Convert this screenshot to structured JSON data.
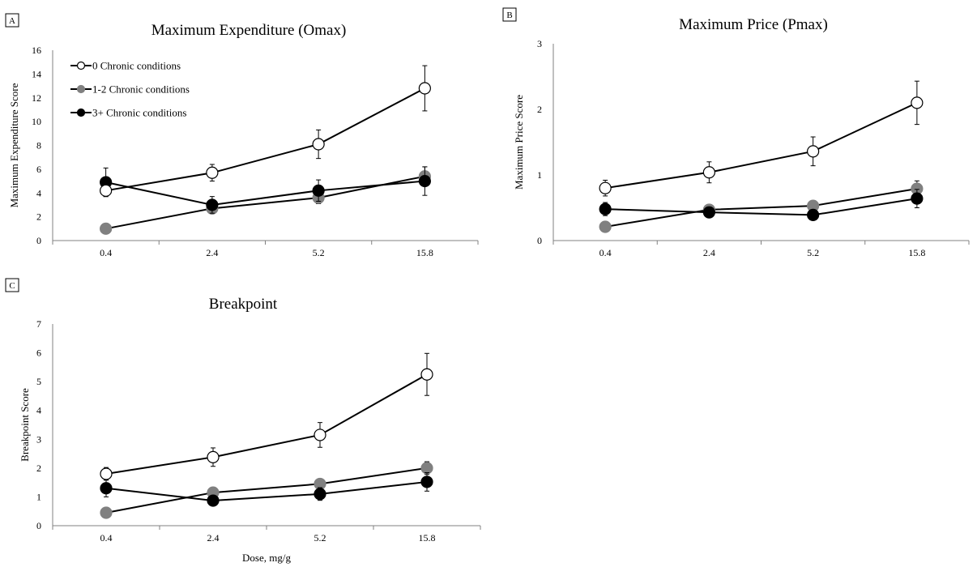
{
  "colors": {
    "axis": "#808080",
    "series_stroke": "#000000",
    "marker_open": "#ffffff",
    "marker_gray": "#808080",
    "marker_black": "#000000"
  },
  "legend": {
    "placement": "top-left",
    "items": [
      "0 Chronic conditions",
      "1-2 Chronic conditions",
      "3+ Chronic conditions"
    ]
  },
  "chart_data": [
    {
      "panel": "A",
      "type": "line",
      "title": "Maximum Expenditure (Omax)",
      "xlabel": "",
      "ylabel": "Maximum Expenditure Score",
      "categories": [
        "0.4",
        "2.4",
        "5.2",
        "15.8"
      ],
      "yticks": [
        "0",
        "2",
        "4",
        "6",
        "8",
        "10",
        "12",
        "14",
        "16"
      ],
      "ylim": [
        0,
        16
      ],
      "grid": false,
      "legend": true,
      "series": [
        {
          "name": "0 Chronic conditions",
          "marker": "open",
          "values": [
            4.2,
            5.7,
            8.1,
            12.8
          ],
          "errors": [
            0.5,
            0.7,
            1.2,
            1.9
          ]
        },
        {
          "name": "1-2 Chronic conditions",
          "marker": "gray",
          "values": [
            1.0,
            2.7,
            3.6,
            5.4
          ],
          "errors": [
            0.1,
            0.4,
            0.5,
            0.8
          ]
        },
        {
          "name": "3+ Chronic conditions",
          "marker": "black",
          "values": [
            4.9,
            3.0,
            4.2,
            5.0
          ],
          "errors": [
            1.2,
            0.7,
            0.9,
            1.2
          ]
        }
      ]
    },
    {
      "panel": "B",
      "type": "line",
      "title": "Maximum Price (Pmax)",
      "xlabel": "",
      "ylabel": "Maximum Price Score",
      "categories": [
        "0.4",
        "2.4",
        "5.2",
        "15.8"
      ],
      "yticks": [
        "0",
        "1",
        "2",
        "3"
      ],
      "ylim": [
        0,
        3
      ],
      "grid": false,
      "legend": false,
      "series": [
        {
          "name": "0 Chronic conditions",
          "marker": "open",
          "values": [
            0.8,
            1.04,
            1.36,
            2.1
          ],
          "errors": [
            0.12,
            0.16,
            0.22,
            0.33
          ]
        },
        {
          "name": "1-2 Chronic conditions",
          "marker": "gray",
          "values": [
            0.21,
            0.47,
            0.53,
            0.79
          ],
          "errors": [
            0.03,
            0.05,
            0.07,
            0.12
          ]
        },
        {
          "name": "3+ Chronic conditions",
          "marker": "black",
          "values": [
            0.48,
            0.43,
            0.39,
            0.64
          ],
          "errors": [
            0.1,
            0.08,
            0.07,
            0.14
          ]
        }
      ]
    },
    {
      "panel": "C",
      "type": "line",
      "title": "Breakpoint",
      "xlabel": "Dose, mg/g",
      "ylabel": "Breakpoint Score",
      "categories": [
        "0.4",
        "2.4",
        "5.2",
        "15.8"
      ],
      "yticks": [
        "0",
        "1",
        "2",
        "3",
        "4",
        "5",
        "6",
        "7"
      ],
      "ylim": [
        0,
        7
      ],
      "grid": false,
      "legend": false,
      "series": [
        {
          "name": "0 Chronic conditions",
          "marker": "open",
          "values": [
            1.8,
            2.38,
            3.15,
            5.25
          ],
          "errors": [
            0.22,
            0.32,
            0.43,
            0.73
          ]
        },
        {
          "name": "1-2 Chronic conditions",
          "marker": "gray",
          "values": [
            0.45,
            1.15,
            1.45,
            2.0
          ],
          "errors": [
            0.05,
            0.12,
            0.15,
            0.22
          ]
        },
        {
          "name": "3+ Chronic conditions",
          "marker": "black",
          "values": [
            1.3,
            0.87,
            1.1,
            1.52
          ],
          "errors": [
            0.3,
            0.18,
            0.22,
            0.32
          ]
        }
      ]
    }
  ]
}
